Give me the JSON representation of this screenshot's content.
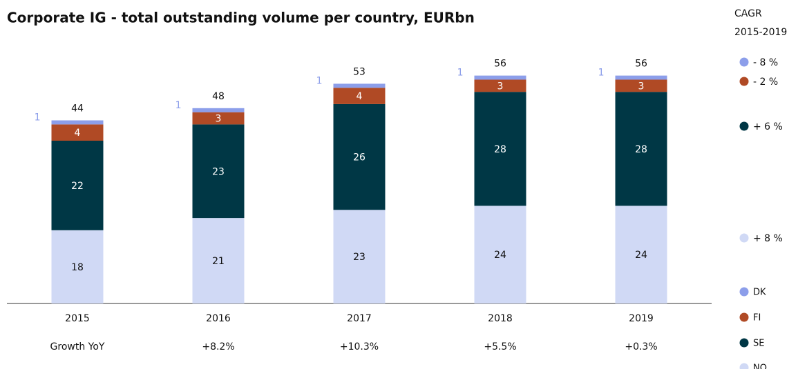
{
  "chart_data": {
    "type": "stacked_bar",
    "title": "Corporate IG - total outstanding volume per country, EURbn",
    "categories": [
      "2015",
      "2016",
      "2017",
      "2018",
      "2019"
    ],
    "series": [
      {
        "name": "NO",
        "color": "#d0d9f5",
        "label_color": "#111111",
        "cagr": "+ 8 %",
        "values": [
          18,
          21,
          23,
          24,
          24
        ]
      },
      {
        "name": "SE",
        "color": "#003745",
        "label_color": "#ffffff",
        "cagr": "+ 6 %",
        "values": [
          22,
          23,
          26,
          28,
          28
        ]
      },
      {
        "name": "FI",
        "color": "#b04a25",
        "label_color": "#ffffff",
        "cagr": "- 2 %",
        "values": [
          4,
          3,
          4,
          3,
          3
        ]
      },
      {
        "name": "DK",
        "color": "#8c9eea",
        "label_color": "#8c9eea",
        "cagr": "- 8 %",
        "values": [
          1,
          1,
          1,
          1,
          1
        ]
      }
    ],
    "totals": [
      44,
      48,
      53,
      56,
      56
    ],
    "cagr_title": "CAGR",
    "cagr_period": "2015-2019",
    "growth_label": "Growth YoY",
    "growth_yoy": [
      null,
      "+8.2%",
      "+10.3%",
      "+5.5%",
      "+0.3%"
    ]
  }
}
